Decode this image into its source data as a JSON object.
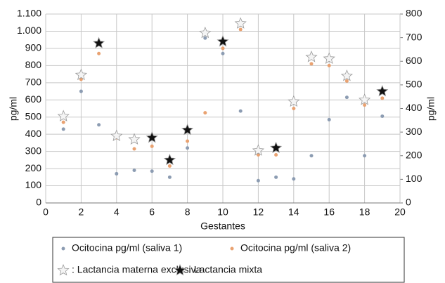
{
  "chart_data": {
    "type": "scatter",
    "x_label": "Gestantes",
    "y_label": "pg/ml",
    "y2_label": "pg/ml",
    "xlim": [
      0,
      20
    ],
    "xticks": [
      0,
      2,
      4,
      6,
      8,
      10,
      12,
      14,
      16,
      18,
      20
    ],
    "ylim": [
      0,
      1100
    ],
    "yticks": [
      0,
      100,
      200,
      300,
      400,
      500,
      600,
      700,
      800,
      900,
      {
        "value": 1000,
        "label": "1.000"
      },
      {
        "value": 1100,
        "label": "1.100"
      }
    ],
    "y2lim": [
      0,
      800
    ],
    "y2ticks": [
      0,
      100,
      200,
      300,
      400,
      500,
      600,
      700,
      800
    ],
    "grid": true,
    "series": [
      {
        "name": "Ocitocina pg/ml (saliva 1)",
        "color": "#8c9cb2",
        "marker": "circle",
        "x": [
          1,
          2,
          3,
          4,
          5,
          6,
          7,
          8,
          9,
          10,
          11,
          12,
          13,
          14,
          15,
          16,
          17,
          18,
          19
        ],
        "values": [
          430,
          650,
          455,
          170,
          190,
          185,
          150,
          320,
          960,
          870,
          535,
          130,
          150,
          140,
          275,
          485,
          615,
          275,
          505
        ]
      },
      {
        "name": "Ocitocina pg/ml (saliva 2)",
        "color": "#e9a271",
        "marker": "circle",
        "x": [
          1,
          2,
          3,
          4,
          5,
          6,
          7,
          8,
          9,
          10,
          11,
          12,
          13,
          14,
          15,
          16,
          17,
          18,
          19
        ],
        "values": [
          470,
          720,
          870,
          380,
          315,
          330,
          215,
          360,
          525,
          900,
          1010,
          280,
          280,
          550,
          810,
          800,
          710,
          570,
          610
        ]
      },
      {
        "name": ": Lactancia materna exclusiva",
        "color": "#f4f4f4",
        "marker": "star",
        "x": [
          1,
          2,
          4,
          5,
          9,
          11,
          12,
          14,
          15,
          16,
          17,
          18
        ],
        "values": [
          505,
          745,
          390,
          370,
          990,
          1045,
          305,
          590,
          850,
          840,
          740,
          600
        ]
      },
      {
        "name": ": Lactancia mixta",
        "color": "#111111",
        "marker": "star",
        "x": [
          3,
          6,
          7,
          8,
          10,
          13,
          19
        ],
        "values": [
          930,
          380,
          250,
          425,
          940,
          320,
          650
        ]
      }
    ]
  }
}
